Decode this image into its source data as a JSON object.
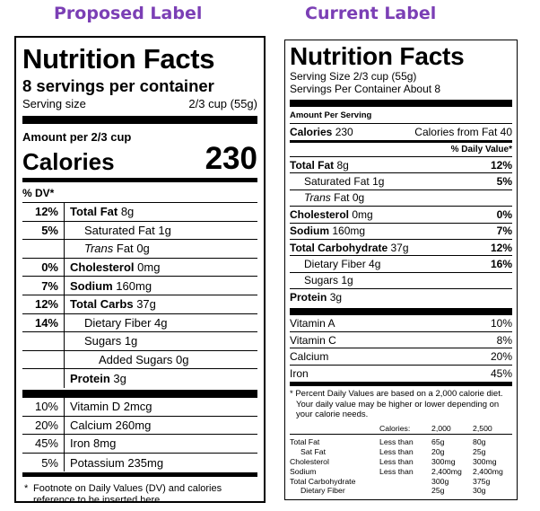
{
  "headings": {
    "proposed": "Proposed Label",
    "current": "Current Label"
  },
  "proposed": {
    "title": "Nutrition Facts",
    "servings": "8 servings per container",
    "serving_size_label": "Serving size",
    "serving_size_value": "2/3 cup (55g)",
    "amount_per": "Amount per 2/3 cup",
    "calories_label": "Calories",
    "calories_value": "230",
    "dv_header": "% DV*",
    "nutrients": [
      {
        "pct": "12%",
        "name": "Total Fat",
        "amount": "8g"
      },
      {
        "pct": "5%",
        "name": "Saturated Fat",
        "amount": "1g"
      },
      {
        "pct": "",
        "name": "Trans",
        "name2": "Fat",
        "amount": "0g"
      },
      {
        "pct": "0%",
        "name": "Cholesterol",
        "amount": "0mg"
      },
      {
        "pct": "7%",
        "name": "Sodium",
        "amount": "160mg"
      },
      {
        "pct": "12%",
        "name": "Total Carbs",
        "amount": "37g"
      },
      {
        "pct": "14%",
        "name": "Dietary Fiber",
        "amount": "4g"
      },
      {
        "pct": "",
        "name": "Sugars",
        "amount": "1g"
      },
      {
        "pct": "",
        "name": "Added Sugars",
        "amount": "0g"
      },
      {
        "pct": "",
        "name": "Protein",
        "amount": "3g"
      }
    ],
    "vitamins": [
      {
        "pct": "10%",
        "name": "Vitamin D",
        "amount": "2mcg"
      },
      {
        "pct": "20%",
        "name": "Calcium",
        "amount": "260mg"
      },
      {
        "pct": "45%",
        "name": "Iron",
        "amount": "8mg"
      },
      {
        "pct": "5%",
        "name": "Potassium",
        "amount": "235mg"
      }
    ],
    "footnote_star": "*",
    "footnote": "Footnote on Daily Values (DV) and calories reference to be inserted here."
  },
  "current": {
    "title": "Nutrition Facts",
    "serving_size": "Serving Size 2/3 cup (55g)",
    "servings_per": "Servings Per Container About 8",
    "amount_per": "Amount Per Serving",
    "calories_label": "Calories",
    "calories_value": "230",
    "calories_fat": "Calories from Fat 40",
    "dv_header": "% Daily Value*",
    "nutrients": [
      {
        "name": "Total Fat",
        "amount": "8g",
        "pct": "12%"
      },
      {
        "name": "Saturated Fat",
        "amount": "1g",
        "pct": "5%"
      },
      {
        "name": "Trans",
        "name2": "Fat",
        "amount": "0g",
        "pct": ""
      },
      {
        "name": "Cholesterol",
        "amount": "0mg",
        "pct": "0%"
      },
      {
        "name": "Sodium",
        "amount": "160mg",
        "pct": "7%"
      },
      {
        "name": "Total Carbohydrate",
        "amount": "37g",
        "pct": "12%"
      },
      {
        "name": "Dietary Fiber",
        "amount": "4g",
        "pct": "16%"
      },
      {
        "name": "Sugars",
        "amount": "1g",
        "pct": ""
      },
      {
        "name": "Protein",
        "amount": "3g",
        "pct": ""
      }
    ],
    "vitamins": [
      {
        "name": "Vitamin A",
        "pct": "10%"
      },
      {
        "name": "Vitamin C",
        "pct": "8%"
      },
      {
        "name": "Calcium",
        "pct": "20%"
      },
      {
        "name": "Iron",
        "pct": "45%"
      }
    ],
    "footnote_1": "* Percent Daily Values are based on a 2,000 calorie diet.",
    "footnote_2": "Your daily value may be higher or lower depending on",
    "footnote_3": "your calorie needs.",
    "ref_table": {
      "header": [
        "",
        "Calories:",
        "2,000",
        "2,500"
      ],
      "rows": [
        [
          "Total Fat",
          "Less than",
          "65g",
          "80g"
        ],
        [
          "Sat Fat",
          "Less than",
          "20g",
          "25g"
        ],
        [
          "Cholesterol",
          "Less than",
          "300mg",
          "300mg"
        ],
        [
          "Sodium",
          "Less than",
          "2,400mg",
          "2,400mg"
        ],
        [
          "Total Carbohydrate",
          "",
          "300g",
          "375g"
        ],
        [
          "Dietary Fiber",
          "",
          "25g",
          "30g"
        ]
      ]
    }
  }
}
